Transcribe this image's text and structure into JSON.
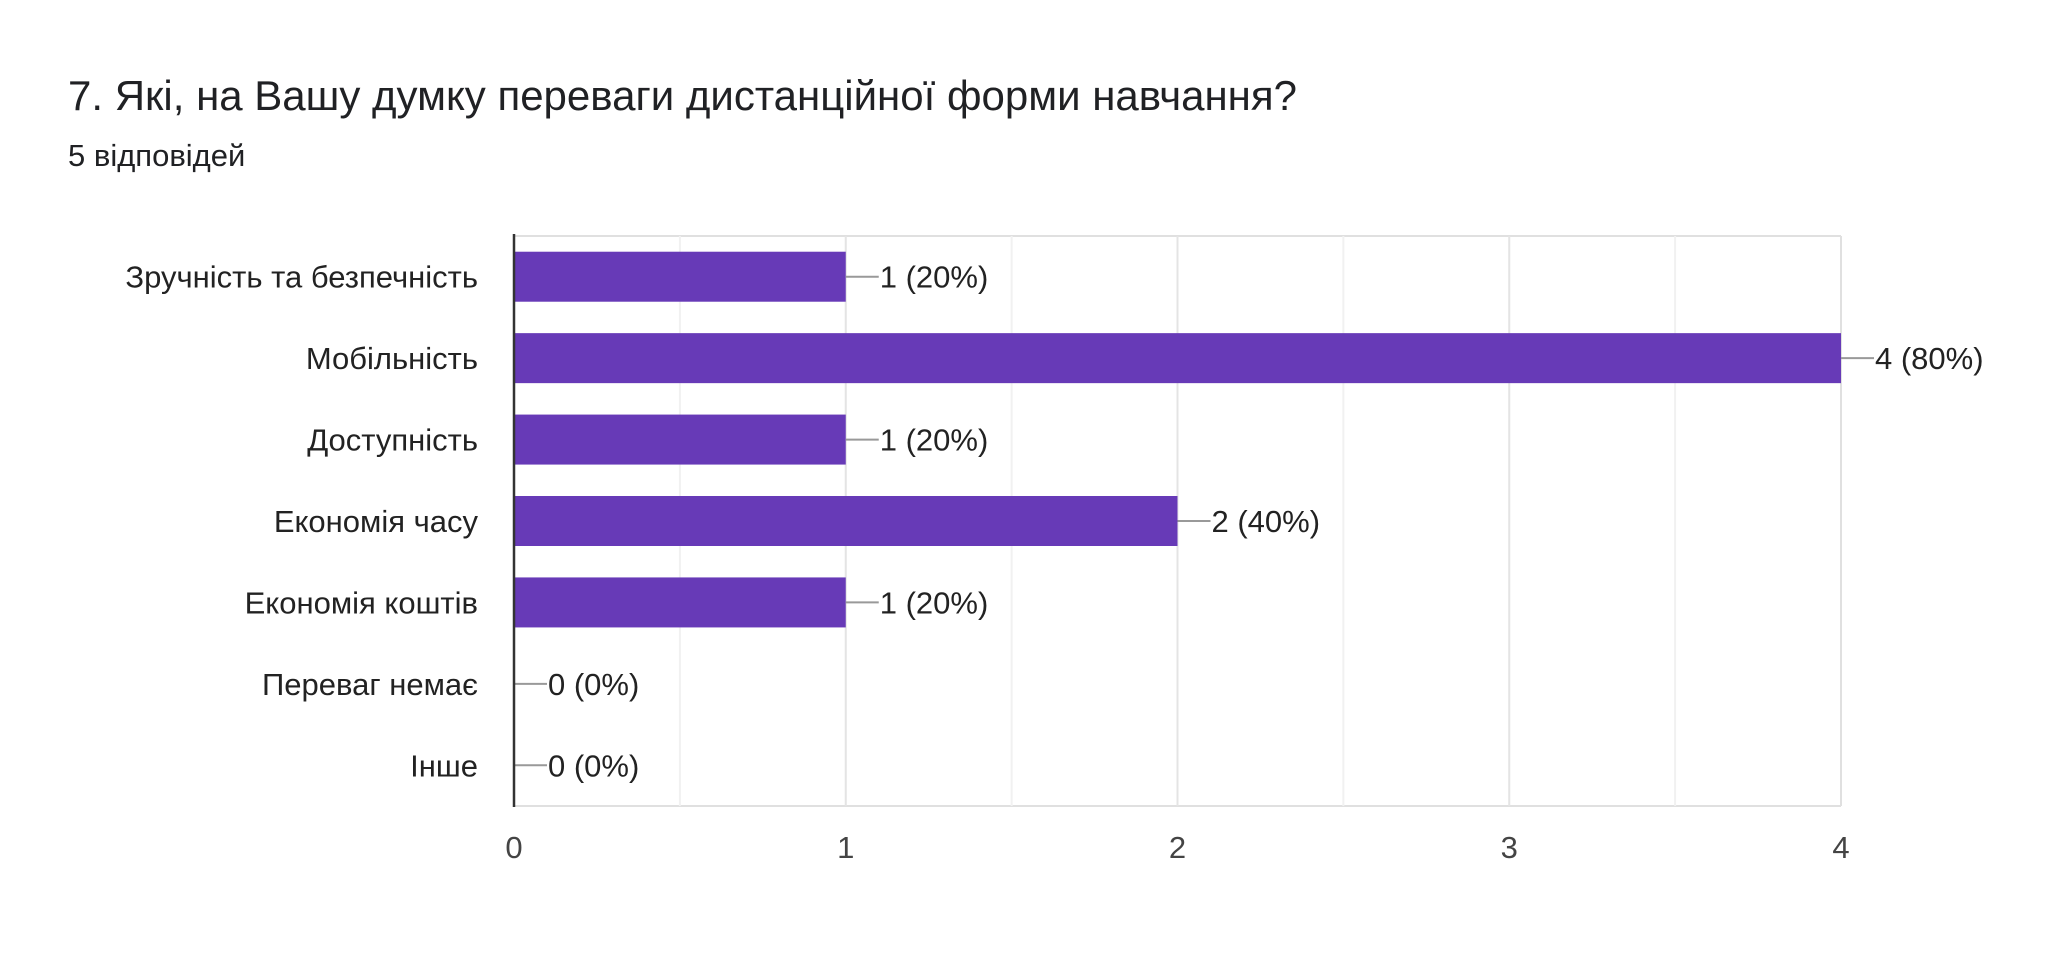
{
  "header": {
    "question": "7. Які, на Вашу думку переваги дистанційної форми навчання?",
    "responses": "5 відповідей"
  },
  "chart_data": {
    "type": "bar",
    "orientation": "horizontal",
    "categories": [
      "Зручність та безпечність",
      "Мобільність",
      "Доступність",
      "Економія часу",
      "Економія коштів",
      "Переваг немає",
      "Інше"
    ],
    "values": [
      1,
      4,
      1,
      2,
      1,
      0,
      0
    ],
    "value_labels": [
      "1 (20%)",
      "4 (80%)",
      "1 (20%)",
      "2 (40%)",
      "1 (20%)",
      "0 (0%)",
      "0 (0%)"
    ],
    "xticks": [
      "0",
      "1",
      "2",
      "3",
      "4"
    ],
    "xlim": [
      0,
      4
    ],
    "grid": true,
    "bar_color": "#673ab7",
    "title": "",
    "xlabel": "",
    "ylabel": ""
  }
}
